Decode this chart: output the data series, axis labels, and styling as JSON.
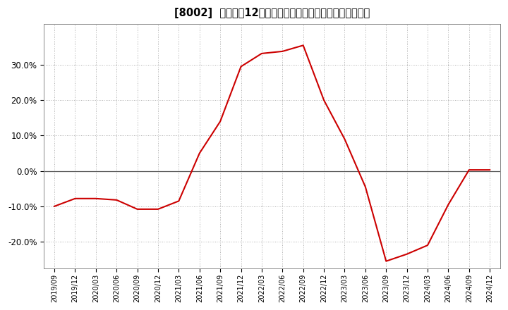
{
  "title": "[8002]  売上高の12か月移動合計の対前年同期増減率の推移",
  "line_color": "#cc0000",
  "background_color": "#ffffff",
  "plot_bg_color": "#ffffff",
  "grid_color": "#999999",
  "ylim": [
    -0.275,
    0.415
  ],
  "yticks": [
    -0.2,
    -0.1,
    0.0,
    0.1,
    0.2,
    0.3
  ],
  "data": [
    [
      "2019/09",
      -0.1
    ],
    [
      "2019/12",
      -0.078
    ],
    [
      "2020/03",
      -0.078
    ],
    [
      "2020/06",
      -0.082
    ],
    [
      "2020/09",
      -0.108
    ],
    [
      "2020/12",
      -0.108
    ],
    [
      "2021/03",
      -0.085
    ],
    [
      "2021/06",
      0.05
    ],
    [
      "2021/09",
      0.14
    ],
    [
      "2021/12",
      0.295
    ],
    [
      "2022/03",
      0.332
    ],
    [
      "2022/06",
      0.338
    ],
    [
      "2022/09",
      0.355
    ],
    [
      "2022/12",
      0.2
    ],
    [
      "2023/03",
      0.09
    ],
    [
      "2023/06",
      -0.045
    ],
    [
      "2023/09",
      -0.255
    ],
    [
      "2023/12",
      -0.235
    ],
    [
      "2024/03",
      -0.21
    ],
    [
      "2024/06",
      -0.095
    ],
    [
      "2024/09",
      0.003
    ],
    [
      "2024/12",
      0.003
    ]
  ]
}
